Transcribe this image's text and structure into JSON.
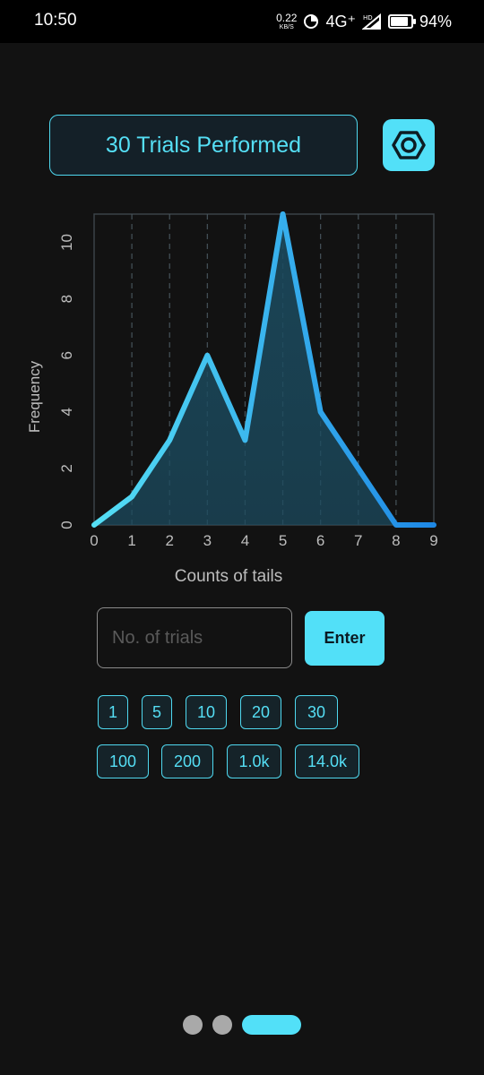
{
  "status_bar": {
    "time": "10:50",
    "net_speed_value": "0.22",
    "net_speed_unit": "KB/S",
    "network": "4G⁺",
    "hd_label": "HD",
    "battery_percent": "94%",
    "battery_level": 0.94
  },
  "header": {
    "trials_text": "30 Trials Performed",
    "settings_icon": "hexagon-nut-icon"
  },
  "chart_data": {
    "type": "area",
    "x": [
      0,
      1,
      2,
      3,
      4,
      5,
      6,
      7,
      8,
      9
    ],
    "values": [
      0,
      1,
      3,
      6,
      3,
      11,
      4,
      2,
      0,
      0
    ],
    "xlabel": "Counts of tails",
    "ylabel": "Frequency",
    "xlim": [
      0,
      9
    ],
    "ylim": [
      0,
      11
    ],
    "x_ticks": [
      "0",
      "1",
      "2",
      "3",
      "4",
      "5",
      "6",
      "7",
      "8",
      "9"
    ],
    "y_ticks": [
      "0",
      "2",
      "4",
      "6",
      "8",
      "10"
    ],
    "y_tick_values": [
      0,
      2,
      4,
      6,
      8,
      10
    ],
    "grid": "vertical dashed",
    "colors": {
      "line_start": "#55dff5",
      "line_end": "#1e88e5",
      "fill": "#1b4a5e"
    }
  },
  "input": {
    "placeholder": "No. of trials",
    "value": "",
    "enter_label": "Enter"
  },
  "presets": {
    "row1": [
      "1",
      "5",
      "10",
      "20",
      "30"
    ],
    "row2": [
      "100",
      "200",
      "1.0k",
      "14.0k"
    ]
  },
  "pager": {
    "page_count": 3,
    "active_page": 3
  },
  "colors": {
    "accent": "#52e0f8",
    "background": "#121212"
  }
}
